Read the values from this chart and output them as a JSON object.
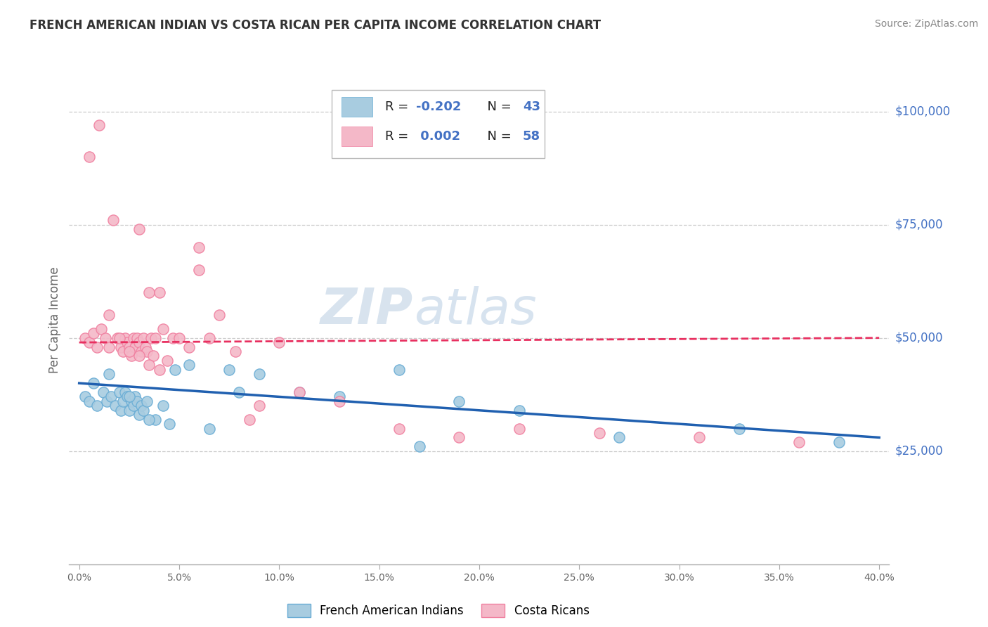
{
  "title": "FRENCH AMERICAN INDIAN VS COSTA RICAN PER CAPITA INCOME CORRELATION CHART",
  "source": "Source: ZipAtlas.com",
  "ylabel": "Per Capita Income",
  "legend_blue_label": "French American Indians",
  "legend_pink_label": "Costa Ricans",
  "ytick_labels": [
    "$25,000",
    "$50,000",
    "$75,000",
    "$100,000"
  ],
  "ytick_values": [
    25000,
    50000,
    75000,
    100000
  ],
  "y_min": 0,
  "y_max": 108000,
  "x_min": -0.005,
  "x_max": 0.405,
  "blue_color": "#a8cce0",
  "pink_color": "#f4b8c8",
  "blue_edge_color": "#6aadd5",
  "pink_edge_color": "#f080a0",
  "blue_line_color": "#2060b0",
  "pink_line_color": "#e83060",
  "title_color": "#333333",
  "axis_label_color": "#666666",
  "ytick_color": "#4472c4",
  "grid_color": "#cccccc",
  "blue_scatter_x": [
    0.003,
    0.005,
    0.007,
    0.009,
    0.012,
    0.014,
    0.016,
    0.018,
    0.02,
    0.021,
    0.022,
    0.023,
    0.024,
    0.025,
    0.026,
    0.027,
    0.028,
    0.029,
    0.03,
    0.031,
    0.032,
    0.034,
    0.038,
    0.042,
    0.048,
    0.055,
    0.065,
    0.075,
    0.09,
    0.11,
    0.13,
    0.16,
    0.19,
    0.22,
    0.27,
    0.33,
    0.38,
    0.015,
    0.025,
    0.035,
    0.045,
    0.08,
    0.17
  ],
  "blue_scatter_y": [
    37000,
    36000,
    40000,
    35000,
    38000,
    36000,
    37000,
    35000,
    38000,
    34000,
    36000,
    38000,
    37000,
    34000,
    36000,
    35000,
    37000,
    36000,
    33000,
    35000,
    34000,
    36000,
    32000,
    35000,
    43000,
    44000,
    30000,
    43000,
    42000,
    38000,
    37000,
    43000,
    36000,
    34000,
    28000,
    30000,
    27000,
    42000,
    37000,
    32000,
    31000,
    38000,
    26000
  ],
  "pink_scatter_x": [
    0.003,
    0.005,
    0.007,
    0.009,
    0.011,
    0.013,
    0.015,
    0.017,
    0.019,
    0.021,
    0.022,
    0.023,
    0.024,
    0.025,
    0.026,
    0.027,
    0.028,
    0.029,
    0.03,
    0.031,
    0.032,
    0.033,
    0.034,
    0.035,
    0.036,
    0.037,
    0.038,
    0.04,
    0.042,
    0.044,
    0.047,
    0.05,
    0.055,
    0.06,
    0.065,
    0.07,
    0.078,
    0.085,
    0.09,
    0.1,
    0.11,
    0.13,
    0.16,
    0.19,
    0.22,
    0.26,
    0.31,
    0.36,
    0.02,
    0.03,
    0.04,
    0.025,
    0.035,
    0.015,
    0.005,
    0.01,
    0.03,
    0.06
  ],
  "pink_scatter_y": [
    50000,
    49000,
    51000,
    48000,
    52000,
    50000,
    55000,
    76000,
    50000,
    48000,
    47000,
    50000,
    49000,
    48000,
    46000,
    50000,
    48000,
    50000,
    49000,
    47000,
    50000,
    48000,
    47000,
    60000,
    50000,
    46000,
    50000,
    60000,
    52000,
    45000,
    50000,
    50000,
    48000,
    65000,
    50000,
    55000,
    47000,
    32000,
    35000,
    49000,
    38000,
    36000,
    30000,
    28000,
    30000,
    29000,
    28000,
    27000,
    50000,
    46000,
    43000,
    47000,
    44000,
    48000,
    90000,
    97000,
    74000,
    70000
  ],
  "blue_line_x": [
    0.0,
    0.4
  ],
  "blue_line_y": [
    40000,
    28000
  ],
  "pink_line_x": [
    0.0,
    0.4
  ],
  "pink_line_y": [
    49000,
    50000
  ],
  "xtick_vals": [
    0.0,
    0.05,
    0.1,
    0.15,
    0.2,
    0.25,
    0.3,
    0.35,
    0.4
  ],
  "xtick_labels": [
    "0.0%",
    "5.0%",
    "10.0%",
    "15.0%",
    "20.0%",
    "25.0%",
    "30.0%",
    "35.0%",
    "40.0%"
  ]
}
